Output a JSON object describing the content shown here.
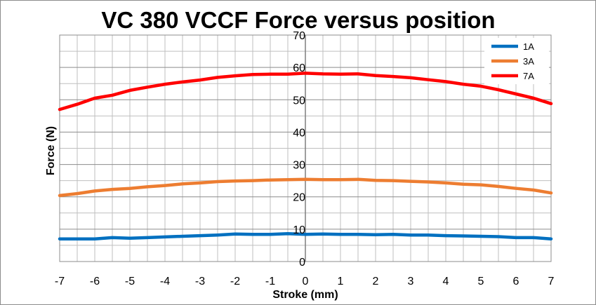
{
  "chart_data": {
    "type": "line",
    "title": "VC 380 VCCF Force versus position",
    "xlabel": "Stroke (mm)",
    "ylabel": "Force (N)",
    "xlim": [
      -7,
      7
    ],
    "ylim": [
      0,
      70
    ],
    "xticks": [
      -7,
      -6,
      -5,
      -4,
      -3,
      -2,
      -1,
      0,
      1,
      2,
      3,
      4,
      5,
      6,
      7
    ],
    "yticks": [
      0,
      10,
      20,
      30,
      40,
      50,
      60,
      70
    ],
    "grid": true,
    "legend_position": "top-right",
    "x": [
      -7,
      -6.5,
      -6,
      -5.5,
      -5,
      -4.5,
      -4,
      -3.5,
      -3,
      -2.5,
      -2,
      -1.5,
      -1,
      -0.5,
      0,
      0.5,
      1,
      1.5,
      2,
      2.5,
      3,
      3.5,
      4,
      4.5,
      5,
      5.5,
      6,
      6.5,
      7
    ],
    "series": [
      {
        "name": "1A",
        "color": "#0070C0",
        "values": [
          7.0,
          7.0,
          7.0,
          7.4,
          7.2,
          7.4,
          7.6,
          7.8,
          8.0,
          8.2,
          8.5,
          8.4,
          8.4,
          8.6,
          8.4,
          8.5,
          8.4,
          8.4,
          8.3,
          8.4,
          8.2,
          8.2,
          8.0,
          7.9,
          7.8,
          7.7,
          7.4,
          7.4,
          7.0
        ]
      },
      {
        "name": "3A",
        "color": "#ED7D31",
        "values": [
          20.4,
          21.0,
          21.8,
          22.3,
          22.6,
          23.1,
          23.5,
          24.0,
          24.3,
          24.7,
          24.9,
          25.0,
          25.2,
          25.3,
          25.4,
          25.3,
          25.3,
          25.4,
          25.1,
          25.0,
          24.8,
          24.6,
          24.3,
          23.9,
          23.7,
          23.2,
          22.6,
          22.1,
          21.2
        ]
      },
      {
        "name": "7A",
        "color": "#FF0000",
        "values": [
          47.0,
          48.6,
          50.5,
          51.4,
          52.9,
          53.9,
          54.8,
          55.5,
          56.1,
          56.9,
          57.4,
          57.8,
          57.9,
          57.9,
          58.2,
          58.0,
          57.9,
          58.0,
          57.5,
          57.2,
          56.8,
          56.2,
          55.6,
          54.8,
          54.2,
          53.1,
          51.8,
          50.5,
          48.8
        ]
      }
    ]
  }
}
